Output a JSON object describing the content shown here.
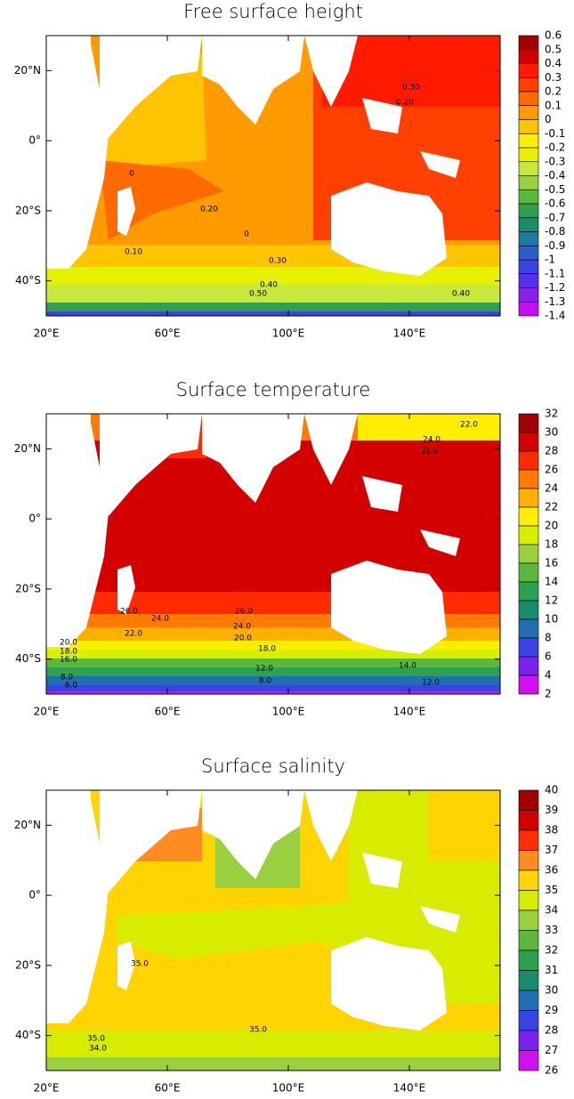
{
  "maps": [
    {
      "title": "Free surface height",
      "xlim": [
        20,
        170
      ],
      "ylim": [
        -50,
        30
      ],
      "xticks": [
        {
          "value": 20,
          "label": "20°E"
        },
        {
          "value": 60,
          "label": "60°E"
        },
        {
          "value": 100,
          "label": "100°E"
        },
        {
          "value": 140,
          "label": "140°E"
        }
      ],
      "yticks": [
        {
          "value": 20,
          "label": "20°N"
        },
        {
          "value": 0,
          "label": "0°"
        },
        {
          "value": -20,
          "label": "20°S"
        },
        {
          "value": -40,
          "label": "40°S"
        }
      ],
      "levels": [
        0.6,
        0.5,
        0.4,
        0.3,
        0.2,
        0.1,
        0,
        -0.1,
        -0.2,
        -0.3,
        -0.4,
        -0.5,
        -0.6,
        -0.7,
        -0.8,
        -0.9,
        -1,
        -1.1,
        -1.2,
        -1.3,
        -1.4
      ],
      "colors": [
        "#a00000",
        "#d00000",
        "#ff1a00",
        "#ff4000",
        "#ff6a00",
        "#ff9a00",
        "#ffc400",
        "#ffee00",
        "#e6f000",
        "#c8e83a",
        "#98d040",
        "#5cb83c",
        "#2ea050",
        "#1a8c6e",
        "#1e7aa0",
        "#2a5ec8",
        "#3a44e0",
        "#5a2ef0",
        "#8a20f0",
        "#c010f0"
      ],
      "contour_labels": [
        "0.30",
        "0.20",
        "0.20",
        "0",
        "0.10",
        "0",
        "0.30",
        "0.40",
        "0.50",
        "0.40"
      ]
    },
    {
      "title": "Surface temperature",
      "xlim": [
        20,
        170
      ],
      "ylim": [
        -50,
        30
      ],
      "xticks": [
        {
          "value": 20,
          "label": "20°E"
        },
        {
          "value": 60,
          "label": "60°E"
        },
        {
          "value": 100,
          "label": "100°E"
        },
        {
          "value": 140,
          "label": "140°E"
        }
      ],
      "yticks": [
        {
          "value": 20,
          "label": "20°N"
        },
        {
          "value": 0,
          "label": "0°"
        },
        {
          "value": -20,
          "label": "20°S"
        },
        {
          "value": -40,
          "label": "40°S"
        }
      ],
      "levels": [
        32,
        30,
        28,
        26,
        24,
        22,
        20,
        18,
        16,
        14,
        12,
        10,
        8,
        6,
        4,
        2
      ],
      "colors": [
        "#a00000",
        "#d40000",
        "#ff2a00",
        "#ff7a00",
        "#ffb000",
        "#ffee00",
        "#d8f000",
        "#9ad040",
        "#5cb83c",
        "#2ea050",
        "#1a8c6e",
        "#1e70b0",
        "#3a44e0",
        "#7a22f0",
        "#d010f0"
      ],
      "contour_labels": [
        "22.0",
        "24.0",
        "26.0",
        "26.0",
        "24.0",
        "26.0",
        "24.0",
        "22.0",
        "20.0",
        "18.0",
        "16.0",
        "8.0",
        "6.0",
        "20.0",
        "18.0",
        "12.0",
        "8.0",
        "14.0",
        "12.0"
      ]
    },
    {
      "title": "Surface salinity",
      "xlim": [
        20,
        170
      ],
      "ylim": [
        -50,
        30
      ],
      "xticks": [
        {
          "value": 20,
          "label": "20°E"
        },
        {
          "value": 60,
          "label": "60°E"
        },
        {
          "value": 100,
          "label": "100°E"
        },
        {
          "value": 140,
          "label": "140°E"
        }
      ],
      "yticks": [
        {
          "value": 20,
          "label": "20°N"
        },
        {
          "value": 0,
          "label": "0°"
        },
        {
          "value": -20,
          "label": "20°S"
        },
        {
          "value": -40,
          "label": "40°S"
        }
      ],
      "levels": [
        40,
        39,
        38,
        37,
        36,
        35,
        34,
        33,
        32,
        31,
        30,
        29,
        28,
        27,
        26
      ],
      "colors": [
        "#a00000",
        "#d40000",
        "#ff3000",
        "#ff8c20",
        "#ffd400",
        "#d8ec00",
        "#9ad040",
        "#5cb83c",
        "#2ea050",
        "#1a8c6e",
        "#1e70b0",
        "#3a44e0",
        "#7a22f0",
        "#d010f0"
      ],
      "contour_labels": [
        "35.0",
        "35.0",
        "35.0",
        "34.0"
      ]
    }
  ]
}
